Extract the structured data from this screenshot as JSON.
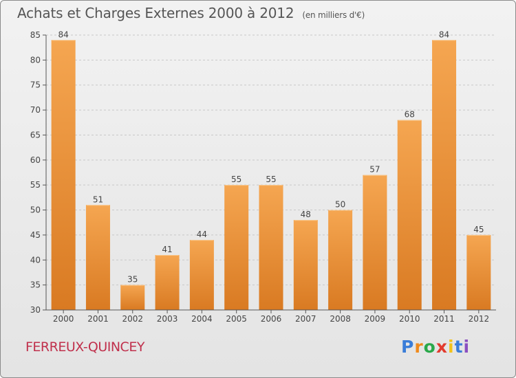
{
  "header": {
    "title": "Achats et Charges Externes 2000 à 2012",
    "unit": "(en milliers d'€)"
  },
  "footer": {
    "commune": "FERREUX-QUINCEY",
    "logo_letters": [
      "P",
      "r",
      "o",
      "x",
      "i",
      "t",
      "i"
    ],
    "logo_colors": [
      "#3a7dd8",
      "#f08a1c",
      "#2aa84a",
      "#e23b2e",
      "#f2c21a",
      "#3a7dd8",
      "#8a4fc0"
    ]
  },
  "colors": {
    "bar_light": "#f5a651",
    "bar_dark": "#d97a22",
    "axis": "#555555",
    "grid": "#c8c8c8",
    "commune": "#c0304c"
  },
  "chart_data": {
    "type": "bar",
    "title": "Achats et Charges Externes 2000 à 2012",
    "subtitle": "(en milliers d'€)",
    "categories": [
      "2000",
      "2001",
      "2002",
      "2003",
      "2004",
      "2005",
      "2006",
      "2007",
      "2008",
      "2009",
      "2010",
      "2011",
      "2012"
    ],
    "values": [
      84,
      51,
      35,
      41,
      44,
      55,
      55,
      48,
      50,
      57,
      68,
      84,
      45
    ],
    "ylim": [
      30,
      85
    ],
    "yticks": [
      30,
      35,
      40,
      45,
      50,
      55,
      60,
      65,
      70,
      75,
      80,
      85
    ],
    "grid": true,
    "data_labels": true
  }
}
